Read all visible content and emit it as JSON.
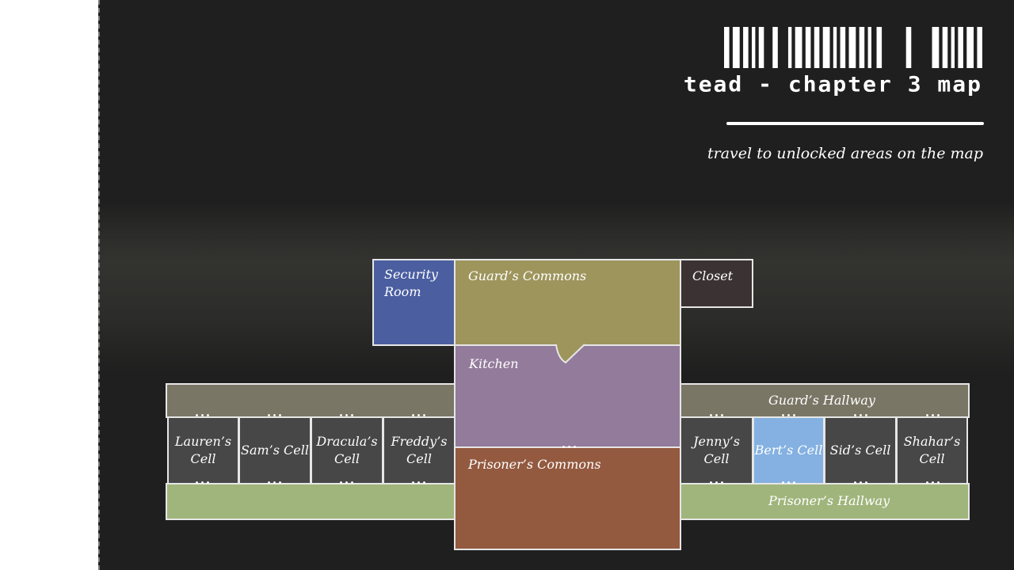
{
  "header": {
    "title": "tead - chapter 3 map",
    "subtitle": "travel to unlocked areas on the map"
  },
  "rooms": {
    "security_room": "Security Room",
    "guards_commons": "Guard’s Commons",
    "closet": "Closet",
    "kitchen": "Kitchen",
    "prisoners_commons": "Prisoner’s Commons",
    "guards_hallway": "Guard’s Hallway",
    "prisoners_hallway": "Prisoner’s Hallway"
  },
  "cells": {
    "lauren": "Lauren’s Cell",
    "sam": "Sam’s Cell",
    "dracula": "Dracula’s Cell",
    "freddy": "Freddy’s Cell",
    "jenny": "Jenny’s Cell",
    "bert": "Bert’s Cell",
    "sid": "Sid’s Cell",
    "shahar": "Shahar’s Cell"
  },
  "colors": {
    "background": "#1f1f1f",
    "security_room": "#4a5ea0",
    "guards_commons": "#9e955d",
    "closet": "#3b3333",
    "kitchen": "#937b9b",
    "prisoners_commons": "#935a40",
    "guards_hallway": "#7a7666",
    "prisoners_hallway": "#a0b57c",
    "cell": "#474747",
    "selected_cell": "#84b1e1"
  },
  "selected_cell": "bert"
}
